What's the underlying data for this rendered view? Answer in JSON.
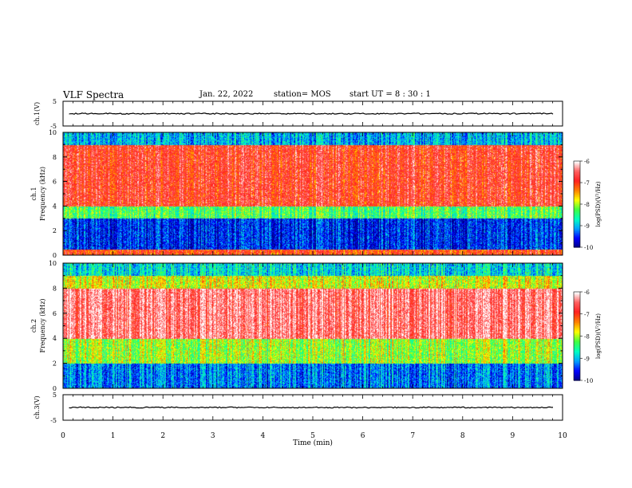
{
  "header": {
    "title": "VLF Spectra",
    "date": "Jan. 22, 2022",
    "station": "station= MOS",
    "start": "start UT = 8 : 30 : 1"
  },
  "colors": {
    "scale": [
      "#000080",
      "#0000ff",
      "#00a0ff",
      "#00ffc0",
      "#40ff40",
      "#ffff00",
      "#ff8000",
      "#ff2020",
      "#ff6060",
      "#ffffff"
    ]
  },
  "chart_data": [
    {
      "type": "line",
      "panel": "ch1-waveform",
      "ylabel": "ch.1(V)",
      "ylim": [
        -5,
        5
      ],
      "yticks": [
        5,
        -5
      ],
      "xlim": [
        0,
        10
      ],
      "series": [
        {
          "values_approx": 0
        }
      ]
    },
    {
      "type": "heatmap",
      "panel": "ch1-spectrogram",
      "ylabel": "ch.1\nFrequency (kHz)",
      "ylabel_line1": "ch.1",
      "ylabel_line2": "Frequency (kHz)",
      "ylim": [
        0,
        10
      ],
      "yticks": [
        "0",
        "2",
        "4",
        "6",
        "8",
        "10"
      ],
      "xlim": [
        0,
        10
      ],
      "colorbar": {
        "label": "log(PSD)(V²/Hz)",
        "range": [
          -10,
          -6
        ],
        "ticks": [
          "-6",
          "-7",
          "-8",
          "-9",
          "-10"
        ]
      },
      "description_bands": [
        {
          "freq_khz": [
            0,
            0.5
          ],
          "level": -7
        },
        {
          "freq_khz": [
            0.5,
            3
          ],
          "level": -9.5
        },
        {
          "freq_khz": [
            3,
            4
          ],
          "level": -8.3
        },
        {
          "freq_khz": [
            4,
            9
          ],
          "level": -6.8
        },
        {
          "freq_khz": [
            9,
            10
          ],
          "level": -9
        }
      ]
    },
    {
      "type": "heatmap",
      "panel": "ch2-spectrogram",
      "ylabel_line1": "ch.2",
      "ylabel_line2": "Frequency (kHz)",
      "ylim": [
        0,
        10
      ],
      "yticks": [
        "0",
        "2",
        "4",
        "6",
        "8",
        "10"
      ],
      "xlim": [
        0,
        10
      ],
      "colorbar": {
        "label": "log(PSD)(V²/Hz)",
        "range": [
          -10,
          -6
        ],
        "ticks": [
          "-6",
          "-7",
          "-8",
          "-9",
          "-10"
        ]
      },
      "description_bands": [
        {
          "freq_khz": [
            0,
            2
          ],
          "level": -9.2
        },
        {
          "freq_khz": [
            2,
            4
          ],
          "level": -8
        },
        {
          "freq_khz": [
            4,
            8
          ],
          "level": -6.4
        },
        {
          "freq_khz": [
            8,
            9
          ],
          "level": -7.8
        },
        {
          "freq_khz": [
            9,
            10
          ],
          "level": -8.8
        }
      ]
    },
    {
      "type": "line",
      "panel": "ch3-waveform",
      "ylabel": "ch.3(V)",
      "ylim": [
        -5,
        5
      ],
      "yticks": [
        5,
        -5
      ],
      "xlim": [
        0,
        10
      ],
      "series": [
        {
          "values_approx": 0
        }
      ]
    }
  ],
  "xaxis": {
    "label": "Time (min)",
    "ticks": [
      "0",
      "1",
      "2",
      "3",
      "4",
      "5",
      "6",
      "7",
      "8",
      "9",
      "10"
    ]
  }
}
